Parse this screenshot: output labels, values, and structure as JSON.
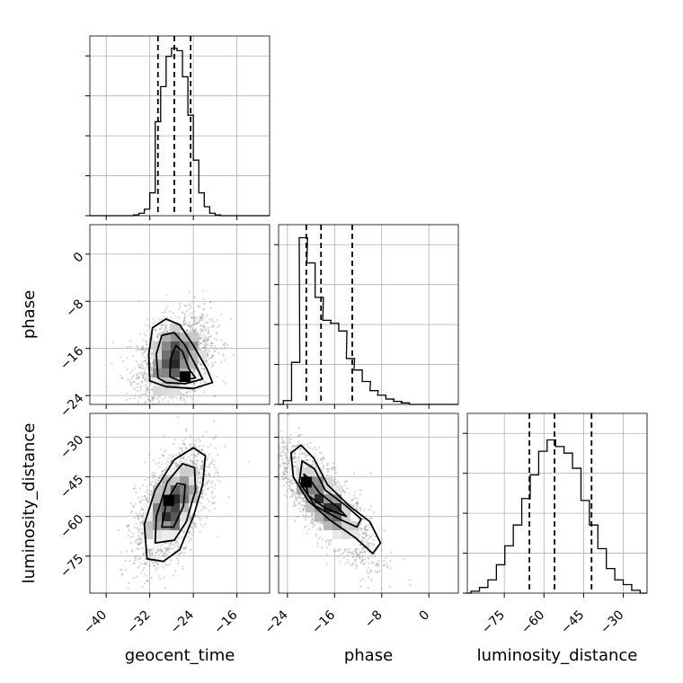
{
  "chart_data": {
    "type": "corner",
    "parameters": [
      "geocent_time",
      "phase",
      "luminosity_distance"
    ],
    "axis_labels": {
      "geocent_time": "geocent_time",
      "phase": "phase",
      "luminosity_distance": "luminosity_distance"
    },
    "ranges": {
      "geocent_time": [
        -43,
        -10
      ],
      "phase": [
        -25.5,
        5
      ],
      "luminosity_distance": [
        -89,
        -21
      ]
    },
    "ticks": {
      "geocent_time": [
        "−40",
        "−32",
        "−24",
        "−16"
      ],
      "phase": [
        "−24",
        "−16",
        "−8",
        "0"
      ],
      "luminosity_distance": [
        "−75",
        "−60",
        "−45",
        "−30"
      ]
    },
    "tick_values": {
      "geocent_time": [
        -40,
        -32,
        -24,
        -16
      ],
      "phase": [
        -24,
        -16,
        -8,
        0
      ],
      "luminosity_distance": [
        -75,
        -60,
        -45,
        -30
      ]
    },
    "histograms": [
      {
        "parameter": "geocent_time",
        "quantiles": [
          -30.5,
          -27.5,
          -24.5
        ],
        "bins": [
          {
            "x": -34.5,
            "count": 1
          },
          {
            "x": -33.5,
            "count": 3
          },
          {
            "x": -32.5,
            "count": 8
          },
          {
            "x": -31.5,
            "count": 28
          },
          {
            "x": -30.5,
            "count": 115
          },
          {
            "x": -29.5,
            "count": 158
          },
          {
            "x": -28.5,
            "count": 195
          },
          {
            "x": -27.5,
            "count": 205
          },
          {
            "x": -26.5,
            "count": 202
          },
          {
            "x": -25.5,
            "count": 170
          },
          {
            "x": -24.5,
            "count": 123
          },
          {
            "x": -23.5,
            "count": 68
          },
          {
            "x": -22.5,
            "count": 28
          },
          {
            "x": -21.5,
            "count": 11
          },
          {
            "x": -20.5,
            "count": 3
          },
          {
            "x": -19.5,
            "count": 1
          }
        ],
        "ymax": 220
      },
      {
        "parameter": "phase",
        "quantiles": [
          -20.8,
          -18.3,
          -13.0
        ],
        "bins": [
          {
            "x": -24.0,
            "count": 5
          },
          {
            "x": -22.6,
            "count": 55
          },
          {
            "x": -21.3,
            "count": 218
          },
          {
            "x": -20.0,
            "count": 185
          },
          {
            "x": -18.6,
            "count": 140
          },
          {
            "x": -17.3,
            "count": 110
          },
          {
            "x": -16.0,
            "count": 106
          },
          {
            "x": -14.6,
            "count": 96
          },
          {
            "x": -13.3,
            "count": 60
          },
          {
            "x": -12.0,
            "count": 45
          },
          {
            "x": -10.6,
            "count": 30
          },
          {
            "x": -9.3,
            "count": 18
          },
          {
            "x": -8.0,
            "count": 12
          },
          {
            "x": -6.6,
            "count": 7
          },
          {
            "x": -5.3,
            "count": 4
          },
          {
            "x": -4.0,
            "count": 2
          }
        ],
        "ymax": 235
      },
      {
        "parameter": "luminosity_distance",
        "quantiles": [
          -65.5,
          -56.0,
          -42.0
        ],
        "bins": [
          {
            "x": -86.0,
            "count": 2
          },
          {
            "x": -82.8,
            "count": 6
          },
          {
            "x": -79.6,
            "count": 14
          },
          {
            "x": -76.4,
            "count": 30
          },
          {
            "x": -73.2,
            "count": 50
          },
          {
            "x": -70.0,
            "count": 72
          },
          {
            "x": -66.8,
            "count": 100
          },
          {
            "x": -63.6,
            "count": 125
          },
          {
            "x": -60.4,
            "count": 150
          },
          {
            "x": -57.2,
            "count": 162
          },
          {
            "x": -54.0,
            "count": 155
          },
          {
            "x": -50.8,
            "count": 148
          },
          {
            "x": -47.6,
            "count": 132
          },
          {
            "x": -44.4,
            "count": 98
          },
          {
            "x": -41.2,
            "count": 72
          },
          {
            "x": -38.0,
            "count": 47
          },
          {
            "x": -34.8,
            "count": 26
          },
          {
            "x": -31.6,
            "count": 14
          },
          {
            "x": -28.4,
            "count": 9
          },
          {
            "x": -25.2,
            "count": 3
          }
        ],
        "ymax": 190
      }
    ],
    "scatter_panels": [
      {
        "x": "geocent_time",
        "y": "phase",
        "mean": [
          -27.5,
          -18.0
        ],
        "sd": [
          3.3,
          3.8
        ],
        "corr": 0.35,
        "contours": [
          [
            [
              -32,
              -21.5
            ],
            [
              -32.2,
              -17
            ],
            [
              -31.5,
              -12.5
            ],
            [
              -29,
              -11
            ],
            [
              -26.5,
              -12
            ],
            [
              -24,
              -15.5
            ],
            [
              -21.5,
              -19.5
            ],
            [
              -20.5,
              -21.8
            ],
            [
              -24,
              -22.8
            ],
            [
              -29,
              -22.5
            ]
          ],
          [
            [
              -30.5,
              -21
            ],
            [
              -30.8,
              -17
            ],
            [
              -29.8,
              -13.8
            ],
            [
              -27.5,
              -13.3
            ],
            [
              -25.5,
              -15.5
            ],
            [
              -23.5,
              -19
            ],
            [
              -22.3,
              -21.2
            ],
            [
              -25.5,
              -22
            ],
            [
              -29,
              -21.8
            ]
          ],
          [
            [
              -28.3,
              -20.8
            ],
            [
              -28.2,
              -17.8
            ],
            [
              -27.2,
              -15.5
            ],
            [
              -26,
              -16.5
            ],
            [
              -24.8,
              -19.5
            ],
            [
              -23.6,
              -21
            ],
            [
              -26.5,
              -21.5
            ]
          ]
        ]
      },
      {
        "x": "geocent_time",
        "y": "luminosity_distance",
        "mean": [
          -28.0,
          -56.0
        ],
        "sd": [
          3.3,
          10.5
        ],
        "corr": 0.55,
        "contours": [
          [
            [
              -32.5,
              -76
            ],
            [
              -33,
              -63
            ],
            [
              -31,
              -50
            ],
            [
              -27.5,
              -38.5
            ],
            [
              -24,
              -34
            ],
            [
              -21.8,
              -37
            ],
            [
              -22.3,
              -48
            ],
            [
              -24,
              -60
            ],
            [
              -26.5,
              -72.5
            ],
            [
              -29.5,
              -77
            ]
          ],
          [
            [
              -31,
              -70
            ],
            [
              -30.8,
              -60
            ],
            [
              -28.8,
              -47
            ],
            [
              -26,
              -40
            ],
            [
              -23.8,
              -41.5
            ],
            [
              -23.6,
              -50
            ],
            [
              -25.3,
              -62
            ],
            [
              -27.5,
              -69
            ]
          ],
          [
            [
              -29.8,
              -64
            ],
            [
              -28.9,
              -54
            ],
            [
              -27,
              -47.5
            ],
            [
              -25.5,
              -48
            ],
            [
              -25.8,
              -56
            ],
            [
              -27.6,
              -64
            ]
          ]
        ]
      },
      {
        "x": "phase",
        "y": "luminosity_distance",
        "mean": [
          -17.5,
          -55.0
        ],
        "sd": [
          4.0,
          11.0
        ],
        "corr": -0.8,
        "contours": [
          [
            [
              -21.7,
              -33
            ],
            [
              -23.4,
              -36
            ],
            [
              -23,
              -45
            ],
            [
              -20.5,
              -54
            ],
            [
              -17,
              -61
            ],
            [
              -12.5,
              -68
            ],
            [
              -9.5,
              -74
            ],
            [
              -8.2,
              -70
            ],
            [
              -10,
              -62
            ],
            [
              -13.5,
              -56
            ],
            [
              -17.2,
              -48
            ],
            [
              -19.5,
              -38
            ]
          ],
          [
            [
              -21.5,
              -39
            ],
            [
              -22,
              -47
            ],
            [
              -19.3,
              -56
            ],
            [
              -15.2,
              -61
            ],
            [
              -12.2,
              -64
            ],
            [
              -11.5,
              -61
            ],
            [
              -14.3,
              -55.5
            ],
            [
              -17.6,
              -50
            ],
            [
              -19.4,
              -42
            ]
          ],
          [
            [
              -21.2,
              -44
            ],
            [
              -20.5,
              -52
            ],
            [
              -17.5,
              -57
            ],
            [
              -14,
              -60
            ],
            [
              -15.5,
              -56.5
            ],
            [
              -18.6,
              -51
            ],
            [
              -20.2,
              -46
            ]
          ]
        ]
      }
    ],
    "density_peaks": [
      {
        "x": "geocent_time",
        "y": "phase",
        "at": [
          -25.5,
          -20.8
        ]
      },
      {
        "x": "geocent_time",
        "y": "luminosity_distance",
        "at": [
          -28.5,
          -54
        ]
      },
      {
        "x": "phase",
        "y": "luminosity_distance",
        "at": [
          -20.8,
          -47
        ]
      }
    ]
  }
}
